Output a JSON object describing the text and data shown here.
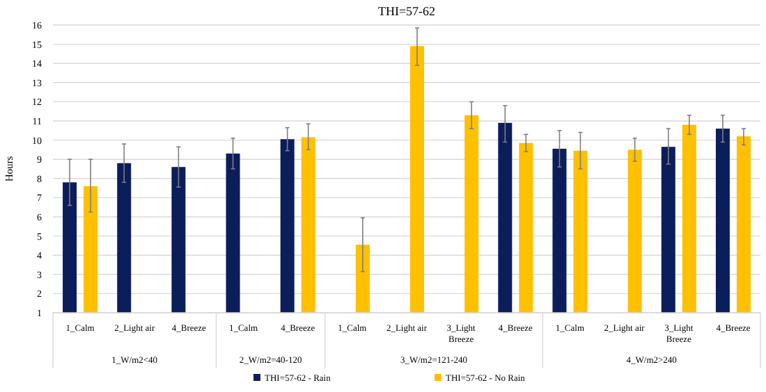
{
  "chart_data": {
    "type": "bar",
    "title": "THI=57-62",
    "ylabel": "Hours",
    "categories": [
      "1_Calm",
      "2_Light air",
      "4_Breeze",
      "1_Calm",
      "4_Breeze",
      "1_Calm",
      "2_Light air",
      "3_Light Breeze",
      "4_Breeze",
      "1_Calm",
      "2_Light air",
      "3_Light Breeze",
      "4_Breeze"
    ],
    "series": [
      {
        "name": "THI=57-62 - Rain",
        "color": "#0c1d5c",
        "values": [
          7.8,
          8.8,
          8.6,
          9.3,
          10.05,
          null,
          null,
          null,
          10.9,
          9.55,
          null,
          9.65,
          10.6
        ],
        "errors": [
          [
            6.6,
            9.0
          ],
          [
            7.8,
            9.8
          ],
          [
            7.55,
            9.65
          ],
          [
            8.5,
            10.1
          ],
          [
            9.45,
            10.65
          ],
          null,
          null,
          null,
          [
            9.9,
            11.8
          ],
          [
            8.6,
            10.5
          ],
          null,
          [
            8.75,
            10.6
          ],
          [
            9.9,
            11.3
          ]
        ]
      },
      {
        "name": "THI=57-62 - No Rain",
        "color": "#ffc000",
        "values": [
          7.6,
          null,
          null,
          null,
          10.15,
          4.55,
          14.9,
          11.3,
          9.85,
          9.45,
          9.5,
          10.8,
          10.2
        ],
        "errors": [
          [
            6.25,
            9.0
          ],
          null,
          null,
          null,
          [
            9.5,
            10.85
          ],
          [
            3.15,
            5.95
          ],
          [
            13.9,
            15.85
          ],
          [
            10.6,
            12.0
          ],
          [
            9.4,
            10.3
          ],
          [
            8.5,
            10.4
          ],
          [
            8.9,
            10.1
          ],
          [
            10.3,
            11.3
          ],
          [
            9.75,
            10.6
          ]
        ]
      }
    ],
    "annotations": [
      "1_W/m2<40",
      "2_W/m2=40-120",
      "3_W/m2=121-240",
      "4_W/m2>240"
    ],
    "ylim": [
      1,
      16
    ],
    "yticks": [
      1,
      2,
      3,
      4,
      5,
      6,
      7,
      8,
      9,
      10,
      11,
      12,
      13,
      14,
      15,
      16
    ],
    "grid": "y",
    "legend": "bottom"
  }
}
